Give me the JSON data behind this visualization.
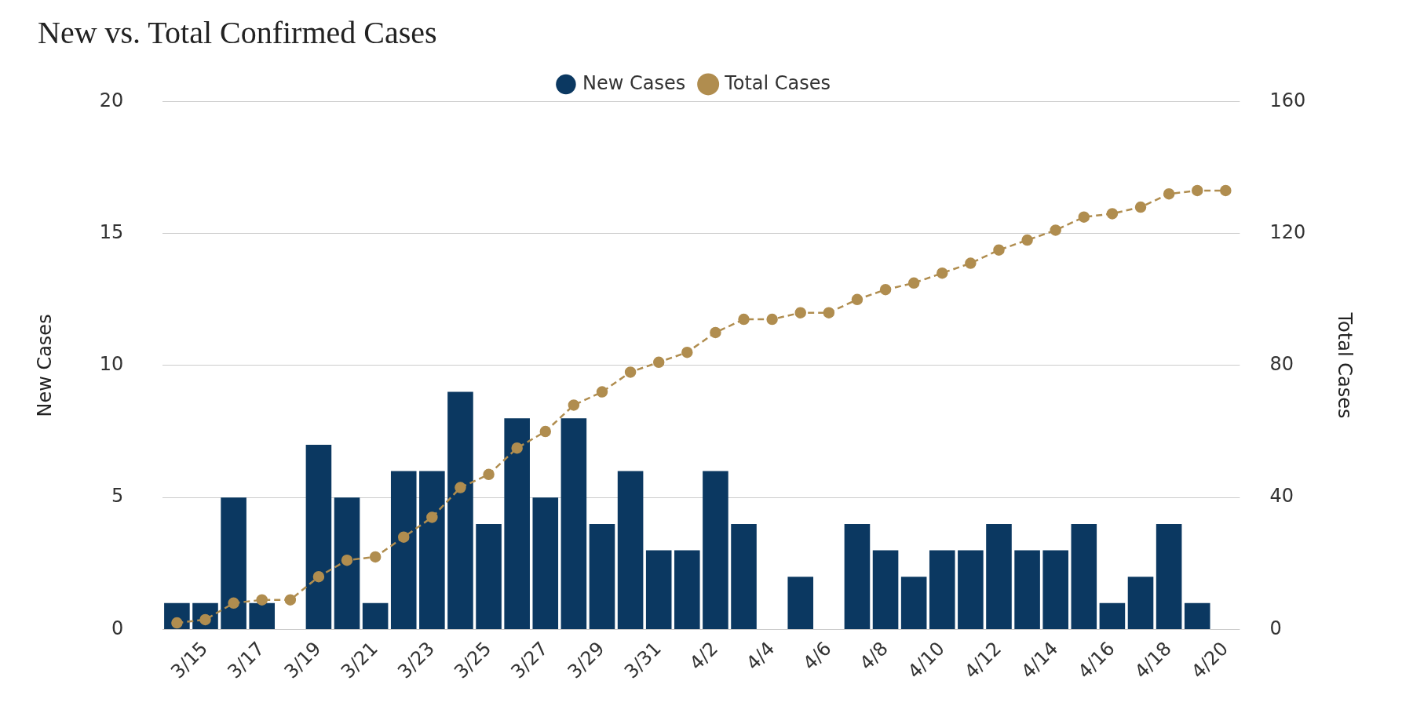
{
  "chart_data": {
    "type": "bar",
    "title": "New vs. Total Confirmed Cases",
    "ylabel": "New Cases",
    "y2label": "Total Cases",
    "categories": [
      null,
      "3/15",
      null,
      "3/17",
      null,
      "3/19",
      null,
      "3/21",
      null,
      "3/23",
      null,
      "3/25",
      null,
      "3/27",
      null,
      "3/29",
      null,
      "3/31",
      null,
      "4/2",
      null,
      "4/4",
      null,
      "4/6",
      null,
      "4/8",
      null,
      "4/10",
      null,
      "4/12",
      null,
      "4/14",
      null,
      "4/16",
      null,
      "4/18",
      null,
      "4/20"
    ],
    "series": [
      {
        "name": "New Cases",
        "color": "#0b3861",
        "values": [
          1,
          1,
          5,
          1,
          0,
          7,
          5,
          1,
          6,
          6,
          9,
          4,
          8,
          5,
          8,
          4,
          6,
          3,
          3,
          6,
          4,
          0,
          2,
          0,
          4,
          3,
          2,
          3,
          3,
          4,
          3,
          3,
          4,
          1,
          2,
          4,
          1,
          0
        ]
      },
      {
        "name": "Total Cases",
        "type": "line",
        "axis": "y2",
        "color": "#b08d4f",
        "values": [
          2,
          3,
          8,
          9,
          9,
          16,
          21,
          22,
          28,
          34,
          43,
          47,
          55,
          60,
          68,
          72,
          78,
          81,
          84,
          90,
          94,
          94,
          96,
          96,
          100,
          103,
          105,
          108,
          111,
          115,
          118,
          121,
          125,
          126,
          128,
          132,
          133,
          133
        ]
      }
    ],
    "ylim": [
      0,
      20
    ],
    "yticks": [
      0,
      5,
      10,
      15,
      20
    ],
    "y2lim": [
      0,
      160
    ],
    "y2ticks": [
      0,
      40,
      80,
      120,
      160
    ],
    "grid": "y",
    "legend": "top",
    "marker": "circle",
    "line_style": "dashed"
  }
}
